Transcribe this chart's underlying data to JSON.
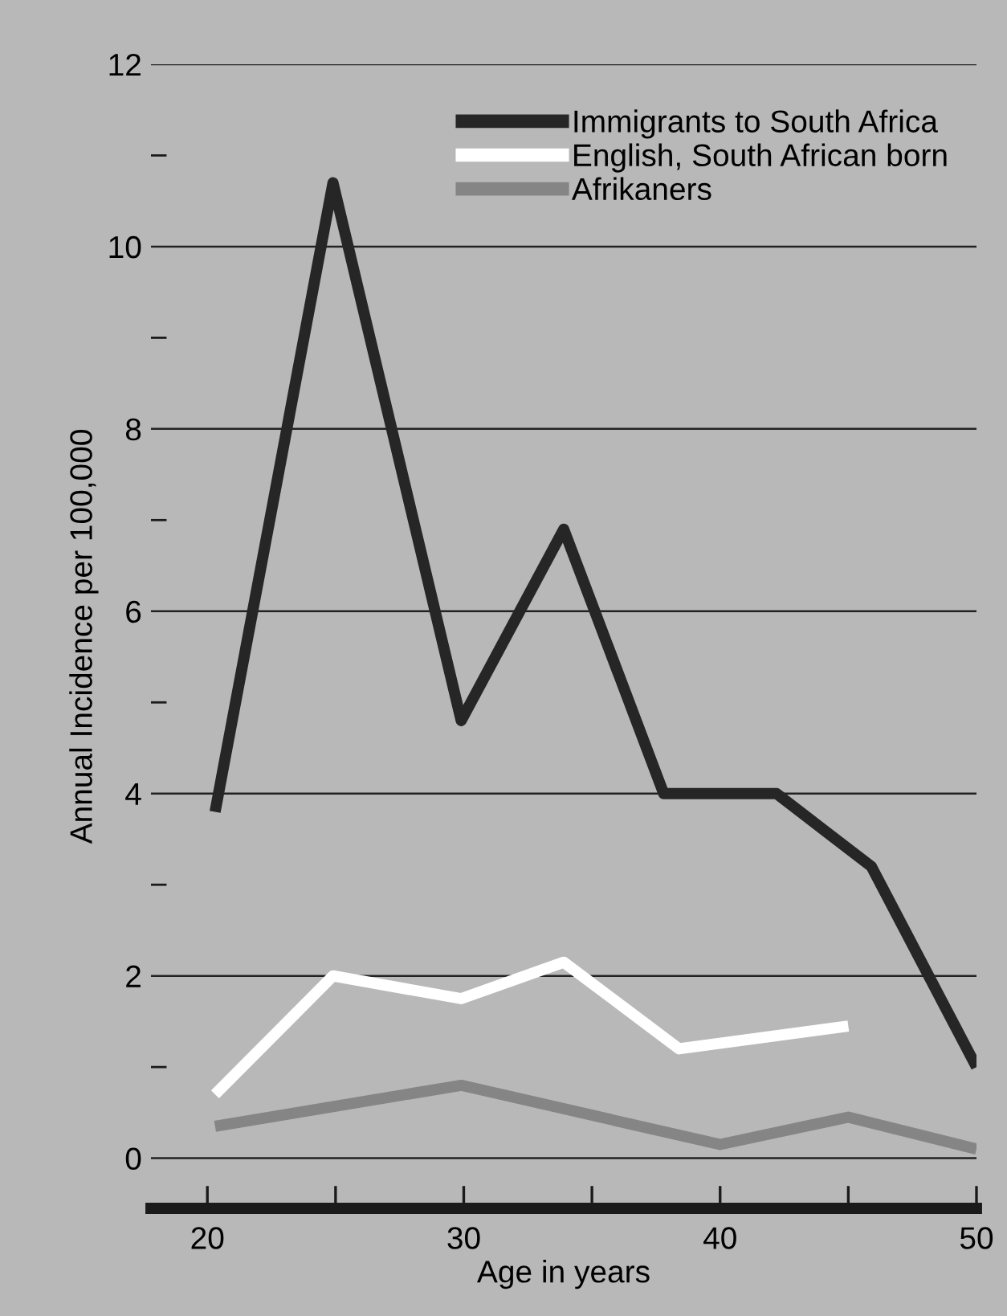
{
  "chart_data": {
    "type": "line",
    "xlabel": "Age in years",
    "ylabel": "Annual Incidence per 100,000",
    "xlim": [
      17.8,
      50
    ],
    "xticks": [
      20,
      {
        "value": 25,
        "label": null
      },
      30,
      {
        "value": 35,
        "label": null
      },
      40,
      {
        "value": 45,
        "label": null
      },
      50
    ],
    "ylim": [
      -0.55,
      12
    ],
    "yticks": [
      0,
      {
        "value": 1,
        "label": null
      },
      2,
      {
        "value": 3,
        "label": null
      },
      4,
      {
        "value": 5,
        "label": null
      },
      6,
      {
        "value": 7,
        "label": null
      },
      8,
      {
        "value": 9,
        "label": null
      },
      10,
      {
        "value": 11,
        "label": null
      },
      12
    ],
    "grid": "y",
    "legend": "top right",
    "line_style": "solid",
    "series": [
      {
        "name": "Immigrants to South Africa",
        "color": "#262626",
        "x": [
          20.3,
          24.9,
          29.9,
          33.9,
          37.8,
          42.2,
          45.9,
          50
        ],
        "values": [
          3.8,
          10.7,
          4.8,
          6.9,
          4.0,
          4.0,
          3.2,
          1.0
        ]
      },
      {
        "name": "English, South African born",
        "color": "#ffffff",
        "x": [
          20.3,
          24.9,
          29.9,
          33.9,
          38.4,
          45.0
        ],
        "values": [
          0.7,
          2.0,
          1.75,
          2.15,
          1.2,
          1.45
        ]
      },
      {
        "name": "Afrikaners",
        "color": "#858585",
        "x": [
          20.3,
          29.9,
          40.0,
          45.0,
          50.0
        ],
        "values": [
          0.35,
          0.8,
          0.15,
          0.45,
          0.1
        ]
      }
    ]
  }
}
